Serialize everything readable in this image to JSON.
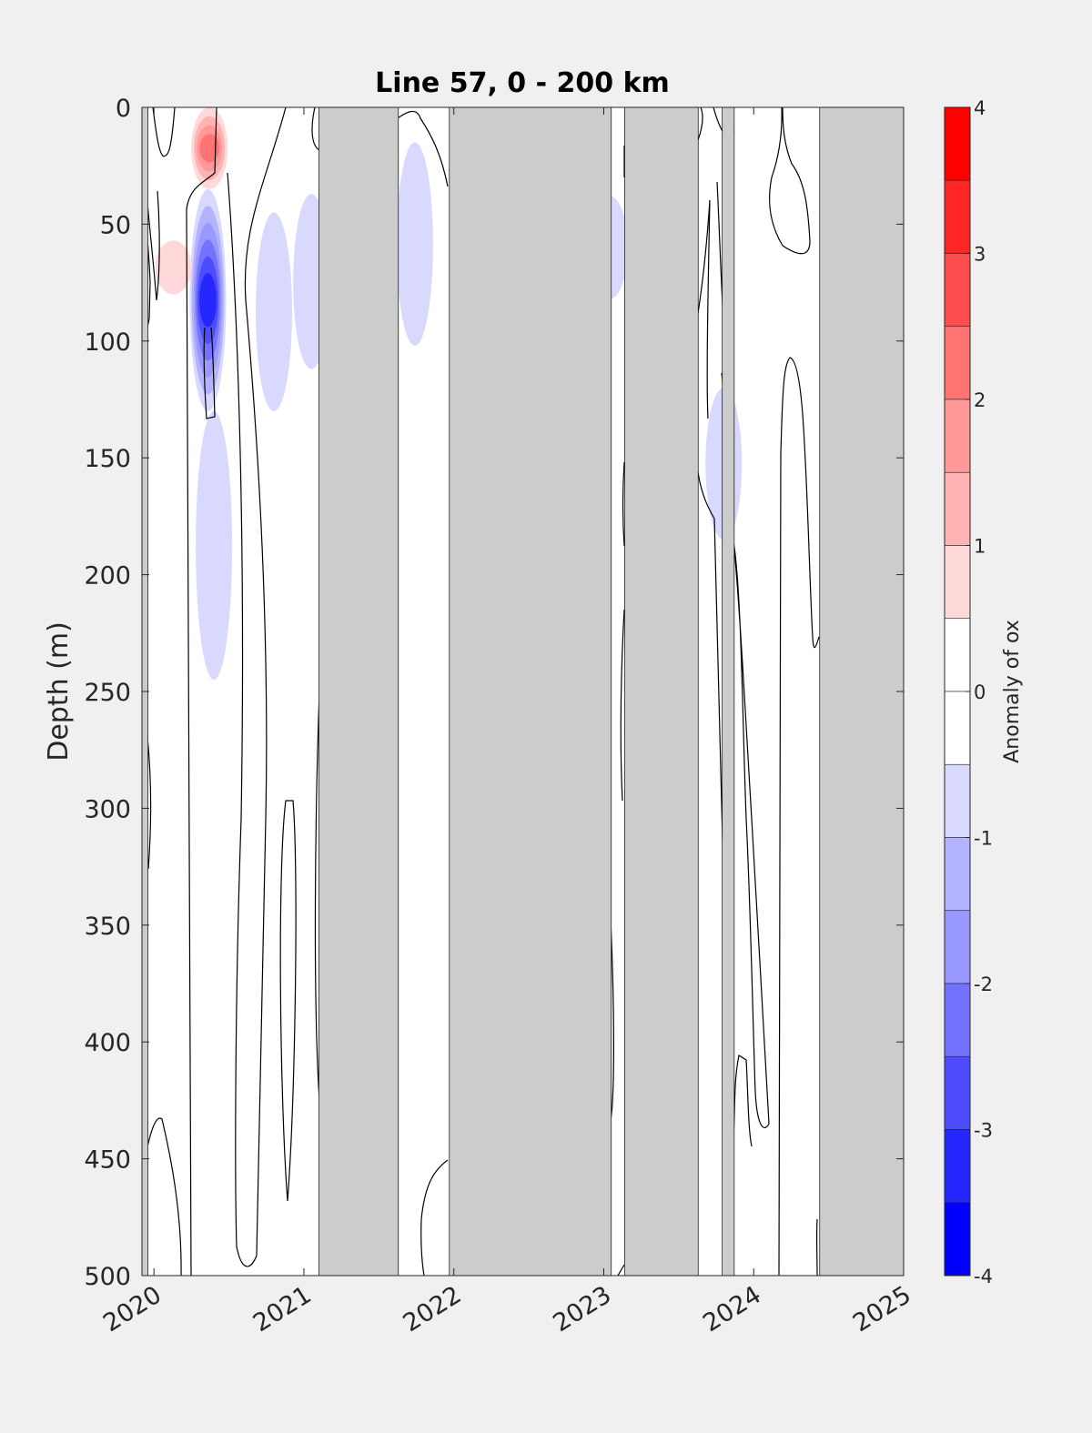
{
  "chart_data": {
    "type": "heatmap",
    "title": "Line 57, 0 - 200 km",
    "ylabel": "Depth (m)",
    "xlabel": "",
    "xlim": [
      2019.92,
      2025.0
    ],
    "ylim": [
      0,
      500
    ],
    "y_reversed": true,
    "x_ticks": [
      "2020",
      "2021",
      "2022",
      "2023",
      "2024",
      "2025"
    ],
    "x_tick_values": [
      2020,
      2021,
      2022,
      2023,
      2024,
      2025
    ],
    "y_ticks": [
      "0",
      "50",
      "100",
      "150",
      "200",
      "250",
      "300",
      "350",
      "400",
      "450",
      "500"
    ],
    "y_tick_values": [
      0,
      50,
      100,
      150,
      200,
      250,
      300,
      350,
      400,
      450,
      500
    ],
    "colorbar": {
      "label": "Anomaly of ox",
      "range": [
        -4,
        4
      ],
      "ticks": [
        "4",
        "3",
        "2",
        "1",
        "0",
        "-1",
        "-2",
        "-3",
        "-4"
      ],
      "tick_values": [
        4,
        3,
        2,
        1,
        0,
        -1,
        -2,
        -3,
        -4
      ],
      "levels": [
        {
          "from": 3.5,
          "to": 4.0,
          "color": "#ff0000"
        },
        {
          "from": 3.0,
          "to": 3.5,
          "color": "#ff2626"
        },
        {
          "from": 2.5,
          "to": 3.0,
          "color": "#ff4d4d"
        },
        {
          "from": 2.0,
          "to": 2.5,
          "color": "#ff7373"
        },
        {
          "from": 1.5,
          "to": 2.0,
          "color": "#ff9999"
        },
        {
          "from": 1.0,
          "to": 1.5,
          "color": "#ffb3b3"
        },
        {
          "from": 0.5,
          "to": 1.0,
          "color": "#ffd9d9"
        },
        {
          "from": 0.0,
          "to": 0.5,
          "color": "#ffffff"
        },
        {
          "from": -0.5,
          "to": 0.0,
          "color": "#ffffff"
        },
        {
          "from": -1.0,
          "to": -0.5,
          "color": "#d9d9ff"
        },
        {
          "from": -1.5,
          "to": -1.0,
          "color": "#b3b3ff"
        },
        {
          "from": -2.0,
          "to": -1.5,
          "color": "#9999ff"
        },
        {
          "from": -2.5,
          "to": -2.0,
          "color": "#7373ff"
        },
        {
          "from": -3.0,
          "to": -2.5,
          "color": "#4d4dff"
        },
        {
          "from": -3.5,
          "to": -3.0,
          "color": "#2626ff"
        },
        {
          "from": -4.0,
          "to": -3.5,
          "color": "#0000ff"
        }
      ]
    },
    "no_data_periods": [
      {
        "start": 2019.92,
        "end": 2019.96
      },
      {
        "start": 2021.1,
        "end": 2021.63
      },
      {
        "start": 2021.97,
        "end": 2023.05
      },
      {
        "start": 2023.14,
        "end": 2023.63
      },
      {
        "start": 2023.79,
        "end": 2023.87
      },
      {
        "start": 2024.44,
        "end": 2025.0
      }
    ],
    "anomaly_features": [
      {
        "x": 2020.37,
        "depth_top": 0,
        "depth_bottom": 35,
        "value": 2.0
      },
      {
        "x": 2020.36,
        "depth_top": 35,
        "depth_bottom": 130,
        "value": -3.0
      },
      {
        "x": 2020.4,
        "depth_top": 130,
        "depth_bottom": 245,
        "value": -0.8
      },
      {
        "x": 2020.13,
        "depth_top": 57,
        "depth_bottom": 80,
        "value": 0.8
      },
      {
        "x": 2020.8,
        "depth_top": 45,
        "depth_bottom": 130,
        "value": -0.8
      },
      {
        "x": 2021.05,
        "depth_top": 37,
        "depth_bottom": 112,
        "value": -0.8
      },
      {
        "x": 2021.74,
        "depth_top": 15,
        "depth_bottom": 102,
        "value": -0.8
      },
      {
        "x": 2023.04,
        "depth_top": 38,
        "depth_bottom": 82,
        "value": -0.9
      },
      {
        "x": 2023.8,
        "depth_top": 120,
        "depth_bottom": 185,
        "value": -0.6
      }
    ],
    "grid": false
  }
}
